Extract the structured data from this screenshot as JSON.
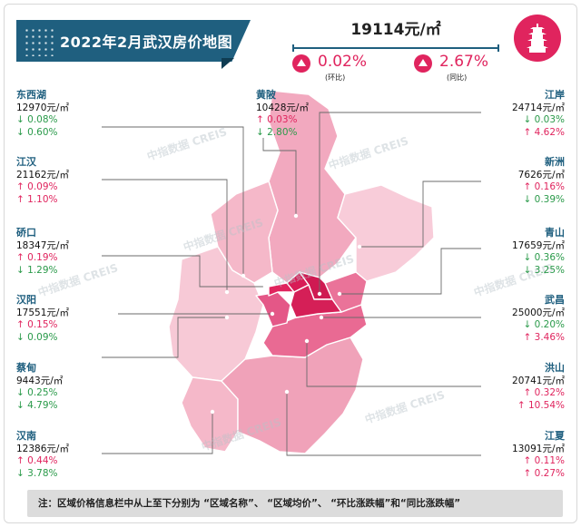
{
  "header": {
    "title": "2022年2月武汉房价地图",
    "avg_price": "19114元/㎡",
    "mom": {
      "value": "0.02%",
      "caption": "(环比)"
    },
    "yoy": {
      "value": "2.67%",
      "caption": "(同比)"
    }
  },
  "watermark": "中指数据 CREIS",
  "districts_left": [
    {
      "name": "东西湖",
      "price": "12970元/㎡",
      "mom": "↓ 0.08%",
      "mom_dir": "down",
      "yoy": "↓ 0.60%",
      "yoy_dir": "down"
    },
    {
      "name": "江汉",
      "price": "21162元/㎡",
      "mom": "↑ 0.09%",
      "mom_dir": "up",
      "yoy": "↑ 1.10%",
      "yoy_dir": "up"
    },
    {
      "name": "硚口",
      "price": "18347元/㎡",
      "mom": "↑ 0.19%",
      "mom_dir": "up",
      "yoy": "↓ 1.29%",
      "yoy_dir": "down"
    },
    {
      "name": "汉阳",
      "price": "17551元/㎡",
      "mom": "↑ 0.15%",
      "mom_dir": "up",
      "yoy": "↓ 0.09%",
      "yoy_dir": "down"
    },
    {
      "name": "蔡甸",
      "price": "9443元/㎡",
      "mom": "↓ 0.25%",
      "mom_dir": "down",
      "yoy": "↓ 4.79%",
      "yoy_dir": "down"
    },
    {
      "name": "汉南",
      "price": "12386元/㎡",
      "mom": "↑ 0.44%",
      "mom_dir": "up",
      "yoy": "↓ 3.78%",
      "yoy_dir": "down"
    }
  ],
  "district_center": {
    "name": "黄陂",
    "price": "10428元/㎡",
    "mom": "↑ 0.03%",
    "mom_dir": "up",
    "yoy": "↓ 2.80%",
    "yoy_dir": "down"
  },
  "districts_right": [
    {
      "name": "江岸",
      "price": "24714元/㎡",
      "mom": "↓ 0.03%",
      "mom_dir": "down",
      "yoy": "↑ 4.62%",
      "yoy_dir": "up"
    },
    {
      "name": "新洲",
      "price": "7626元/㎡",
      "mom": "↑ 0.16%",
      "mom_dir": "up",
      "yoy": "↓ 0.39%",
      "yoy_dir": "down"
    },
    {
      "name": "青山",
      "price": "17659元/㎡",
      "mom": "↓ 0.36%",
      "mom_dir": "down",
      "yoy": "↓ 3.25%",
      "yoy_dir": "down"
    },
    {
      "name": "武昌",
      "price": "25000元/㎡",
      "mom": "↓ 0.20%",
      "mom_dir": "down",
      "yoy": "↑ 3.46%",
      "yoy_dir": "up"
    },
    {
      "name": "洪山",
      "price": "20741元/㎡",
      "mom": "↑ 0.32%",
      "mom_dir": "up",
      "yoy": "↑ 10.54%",
      "yoy_dir": "up"
    },
    {
      "name": "江夏",
      "price": "13091元/㎡",
      "mom": "↑ 0.11%",
      "mom_dir": "up",
      "yoy": "↑ 0.27%",
      "yoy_dir": "up"
    }
  ],
  "footer_note": "注：区域价格信息栏中从上至下分别为 “区域名称”、 “区域均价”、 “环比涨跌幅”和“同比涨跌幅”",
  "colors": {
    "brand": "#1f5f7f",
    "up": "#e0245e",
    "down": "#2a9a4a",
    "map_light": "#f7c9d6",
    "map_mid": "#ee9ab3",
    "map_dark": "#e0245e"
  }
}
